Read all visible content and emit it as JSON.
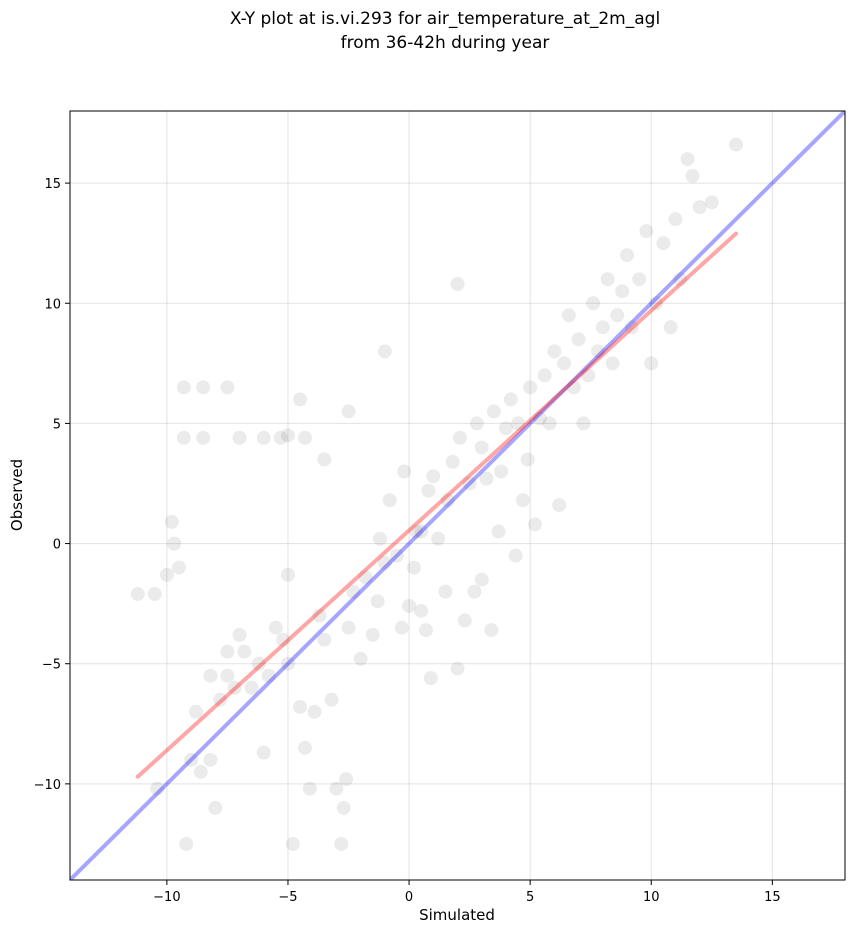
{
  "chart_data": {
    "type": "scatter",
    "title": "X-Y plot at is.vi.293 for air_temperature_at_2m_agl",
    "subtitle": "from 36-42h during year",
    "xlabel": "Simulated",
    "ylabel": "Observed",
    "xlim": [
      -14,
      18
    ],
    "ylim": [
      -14,
      18
    ],
    "xticks": [
      -10,
      -5,
      0,
      5,
      10,
      15
    ],
    "yticks": [
      -10,
      -5,
      0,
      5,
      10,
      15
    ],
    "xtick_labels": [
      "−10",
      "−5",
      "0",
      "5",
      "10",
      "15"
    ],
    "ytick_labels": [
      "−10",
      "−5",
      "0",
      "5",
      "10",
      "15"
    ],
    "grid": true,
    "point_color": "#000000",
    "point_opacity": 0.08,
    "lines": [
      {
        "kind": "one-to-one",
        "color": "#0000ff",
        "opacity": 0.35,
        "x": [
          -14,
          18
        ],
        "y": [
          -14,
          18
        ]
      },
      {
        "kind": "regression-fit",
        "color": "#ff0000",
        "opacity": 0.35,
        "x": [
          -11.2,
          13.5
        ],
        "y": [
          -9.7,
          12.9
        ]
      }
    ],
    "points": [
      [
        -11.2,
        -2.1
      ],
      [
        -10.5,
        -2.1
      ],
      [
        -10.4,
        -10.2
      ],
      [
        -10,
        -1.3
      ],
      [
        -9.8,
        0.9
      ],
      [
        -9.7,
        0
      ],
      [
        -9.5,
        -1
      ],
      [
        -9.2,
        -12.5
      ],
      [
        -9,
        -9
      ],
      [
        -8.8,
        -7
      ],
      [
        -8.6,
        -9.5
      ],
      [
        -8.2,
        -9
      ],
      [
        -8,
        -11
      ],
      [
        -8.2,
        -5.5
      ],
      [
        -7.8,
        -6.5
      ],
      [
        -7.5,
        -5.5
      ],
      [
        -7.2,
        -6
      ],
      [
        -7.5,
        -4.5
      ],
      [
        -7,
        -3.8
      ],
      [
        -6.8,
        -4.5
      ],
      [
        -6.5,
        -6
      ],
      [
        -6.2,
        -5
      ],
      [
        -6,
        -8.7
      ],
      [
        -5.8,
        -5.5
      ],
      [
        -5.5,
        -3.5
      ],
      [
        -5.2,
        -4
      ],
      [
        -5,
        -1.3
      ],
      [
        -5,
        -5
      ],
      [
        -4.8,
        -12.5
      ],
      [
        -4.5,
        -6.8
      ],
      [
        -4.3,
        -8.5
      ],
      [
        -4.1,
        -10.2
      ],
      [
        -3.9,
        -7
      ],
      [
        -3.7,
        -3
      ],
      [
        -3.5,
        -4
      ],
      [
        -3.2,
        -6.5
      ],
      [
        -3,
        -10.2
      ],
      [
        -2.8,
        -12.5
      ],
      [
        -2.7,
        -11
      ],
      [
        -2.6,
        -9.8
      ],
      [
        -2.5,
        -3.5
      ],
      [
        -2.3,
        -2
      ],
      [
        -2,
        -4.8
      ],
      [
        -1.8,
        -1.4
      ],
      [
        -1.5,
        -3.8
      ],
      [
        -1.3,
        -2.4
      ],
      [
        -1.2,
        0.2
      ],
      [
        -1,
        -0.8
      ],
      [
        -0.8,
        1.8
      ],
      [
        -0.5,
        -0.5
      ],
      [
        -0.3,
        -3.5
      ],
      [
        -0.2,
        3
      ],
      [
        0,
        -2.6
      ],
      [
        0.2,
        -1
      ],
      [
        0.3,
        0.5
      ],
      [
        0.5,
        0.5
      ],
      [
        0.5,
        -2.8
      ],
      [
        0.7,
        -3.6
      ],
      [
        0.8,
        2.2
      ],
      [
        0.9,
        -5.6
      ],
      [
        1,
        2.8
      ],
      [
        1.2,
        0.2
      ],
      [
        1.5,
        -2
      ],
      [
        1.6,
        1.8
      ],
      [
        1.8,
        3.4
      ],
      [
        2,
        -5.2
      ],
      [
        2.1,
        4.4
      ],
      [
        2.3,
        -3.2
      ],
      [
        2.5,
        2.5
      ],
      [
        2.7,
        -2
      ],
      [
        2.8,
        5
      ],
      [
        3,
        -1.5
      ],
      [
        3,
        4
      ],
      [
        3.2,
        2.7
      ],
      [
        3.4,
        -3.6
      ],
      [
        3.5,
        5.5
      ],
      [
        3.7,
        0.5
      ],
      [
        3.8,
        3
      ],
      [
        4,
        4.8
      ],
      [
        4.2,
        6
      ],
      [
        4.4,
        -0.5
      ],
      [
        4.5,
        5
      ],
      [
        4.7,
        1.8
      ],
      [
        4.9,
        3.5
      ],
      [
        5,
        6.5
      ],
      [
        5.2,
        0.8
      ],
      [
        5.4,
        5.2
      ],
      [
        5.6,
        7
      ],
      [
        5.8,
        5
      ],
      [
        6,
        8
      ],
      [
        6.2,
        1.6
      ],
      [
        6.4,
        7.5
      ],
      [
        6.6,
        9.5
      ],
      [
        6.8,
        6.5
      ],
      [
        7,
        8.5
      ],
      [
        7.2,
        5
      ],
      [
        7.4,
        7
      ],
      [
        7.6,
        10
      ],
      [
        7.8,
        8
      ],
      [
        8,
        9
      ],
      [
        8.2,
        11
      ],
      [
        8.4,
        7.5
      ],
      [
        8.6,
        9.5
      ],
      [
        8.8,
        10.5
      ],
      [
        9,
        12
      ],
      [
        9.2,
        9
      ],
      [
        9.5,
        11
      ],
      [
        9.8,
        13
      ],
      [
        10,
        7.5
      ],
      [
        10.2,
        10
      ],
      [
        10.5,
        12.5
      ],
      [
        10.8,
        9
      ],
      [
        11,
        13.5
      ],
      [
        11.2,
        11
      ],
      [
        11.5,
        16
      ],
      [
        11.7,
        15.3
      ],
      [
        12,
        14
      ],
      [
        12.5,
        14.2
      ],
      [
        13.5,
        16.6
      ],
      [
        2,
        10.8
      ],
      [
        -1,
        8
      ],
      [
        -2.5,
        5.5
      ],
      [
        -3.5,
        3.5
      ],
      [
        -4.5,
        6
      ],
      [
        -5,
        4.5
      ],
      [
        -9.3,
        6.5
      ],
      [
        -8.5,
        6.5
      ],
      [
        -7.5,
        6.5
      ],
      [
        -9.3,
        4.4
      ],
      [
        -8.5,
        4.4
      ],
      [
        -7,
        4.4
      ],
      [
        -6,
        4.4
      ],
      [
        -5.3,
        4.4
      ],
      [
        -4.3,
        4.4
      ]
    ]
  }
}
